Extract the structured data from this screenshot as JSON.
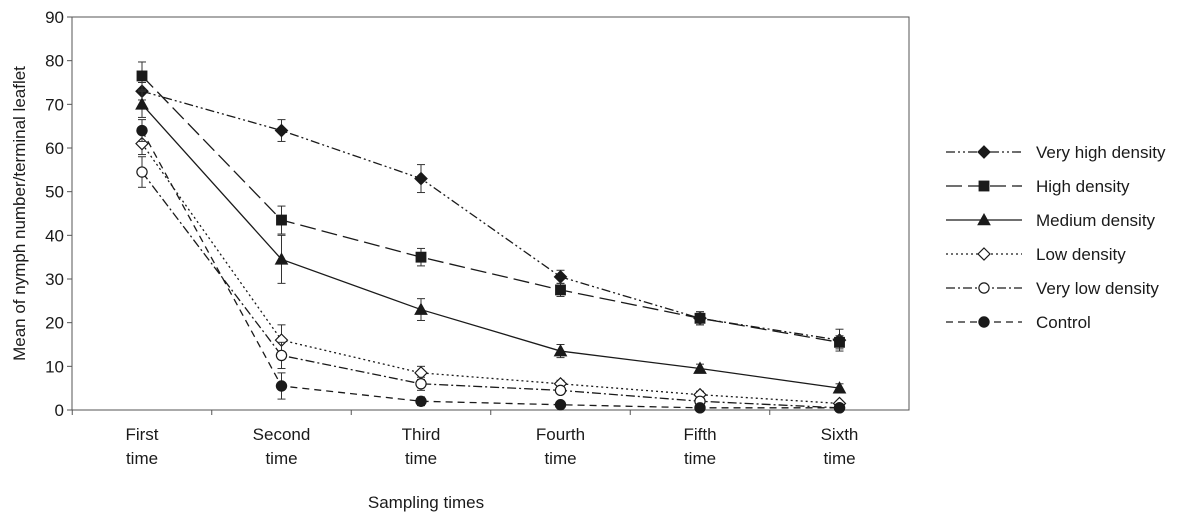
{
  "chart_data": {
    "type": "line",
    "xlabel": "Sampling times",
    "ylabel": "Mean of nymph number/terminal leaflet",
    "ylim": [
      0,
      90
    ],
    "yticks": [
      0,
      10,
      20,
      30,
      40,
      50,
      60,
      70,
      80,
      90
    ],
    "categories": [
      [
        "First",
        "time"
      ],
      [
        "Second",
        "time"
      ],
      [
        "Third",
        "time"
      ],
      [
        "Fourth",
        "time"
      ],
      [
        "Fifth",
        "time"
      ],
      [
        "Sixth",
        "time"
      ]
    ],
    "legend_position": "right",
    "grid": false,
    "series": [
      {
        "name": "Very high density",
        "values": [
          73,
          64,
          53,
          30.5,
          21,
          16
        ],
        "errors": [
          2,
          2.5,
          3.2,
          1.5,
          1.5,
          2.5
        ],
        "marker": "diamond-filled",
        "dash": "dashdotdot",
        "color": "#1a1a1a"
      },
      {
        "name": "High density",
        "values": [
          76.5,
          43.5,
          35,
          27.5,
          21,
          15.5
        ],
        "errors": [
          3.2,
          3.2,
          2,
          1.5,
          1.5,
          1.5
        ],
        "marker": "square-filled",
        "dash": "longdash",
        "color": "#1a1a1a"
      },
      {
        "name": "Medium density",
        "values": [
          70,
          34.5,
          23,
          13.5,
          9.5,
          5
        ],
        "errors": [
          3,
          5.5,
          2.5,
          1.5,
          1,
          1
        ],
        "marker": "triangle-filled",
        "dash": "solid",
        "color": "#1a1a1a"
      },
      {
        "name": "Low density",
        "values": [
          61,
          16,
          8.5,
          6,
          3.5,
          1.5
        ],
        "errors": [
          2.5,
          3.5,
          1.5,
          0.8,
          0.8,
          0.5
        ],
        "marker": "diamond-open",
        "dash": "dotted",
        "color": "#1a1a1a"
      },
      {
        "name": "Very low density",
        "values": [
          54.5,
          12.5,
          6,
          4.5,
          2,
          0.5
        ],
        "errors": [
          3.5,
          3,
          1.5,
          0.8,
          0.5,
          0.3
        ],
        "marker": "circle-open",
        "dash": "dashdot",
        "color": "#1a1a1a"
      },
      {
        "name": "Control",
        "values": [
          64,
          5.5,
          2,
          1.2,
          0.5,
          0.5
        ],
        "errors": [
          2.5,
          3,
          1,
          0.5,
          0.3,
          0.2
        ],
        "marker": "circle-filled",
        "dash": "dashed",
        "color": "#1a1a1a"
      }
    ]
  }
}
